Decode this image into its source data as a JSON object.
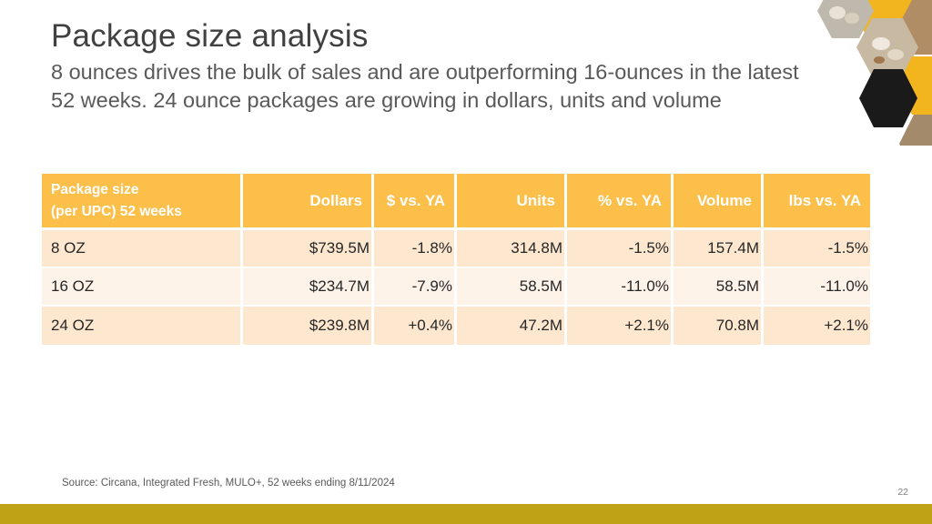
{
  "slide": {
    "title": "Package size analysis",
    "subtitle": "8 ounces drives the bulk of sales and are outperforming 16-ounces in the latest 52 weeks. 24 ounce packages are growing in dollars, units and volume",
    "source": "Source: Circana, Integrated Fresh, MULO+, 52 weeks ending 8/11/2024",
    "page_number": "22"
  },
  "table": {
    "header_line1": "Package size",
    "header_line2": "(per UPC) 52 weeks",
    "columns": [
      "Dollars",
      "$ vs. YA",
      "Units",
      "% vs. YA",
      "Volume",
      "lbs vs. YA"
    ],
    "rows": [
      {
        "size": "8 OZ",
        "dollars": "$739.5M",
        "dollars_vs_ya": "-1.8%",
        "units": "314.8M",
        "units_vs_ya": "-1.5%",
        "volume": "157.4M",
        "lbs_vs_ya": "-1.5%"
      },
      {
        "size": "16 OZ",
        "dollars": "$234.7M",
        "dollars_vs_ya": "-7.9%",
        "units": "58.5M",
        "units_vs_ya": "-11.0%",
        "volume": "58.5M",
        "lbs_vs_ya": "-11.0%"
      },
      {
        "size": "24 OZ",
        "dollars": "$239.8M",
        "dollars_vs_ya": "+0.4%",
        "units": "47.2M",
        "units_vs_ya": "+2.1%",
        "volume": "70.8M",
        "lbs_vs_ya": "+2.1%"
      }
    ]
  },
  "colors": {
    "header_bg": "#fbbf4a",
    "row_odd": "#fde7cf",
    "row_even": "#fef3e8",
    "accent_bar": "#bfa215",
    "hex_gold": "#f2b51d",
    "hex_dark": "#1a1a1a"
  },
  "icons": {
    "collage": "mushroom-photo-hexagon-collage"
  }
}
